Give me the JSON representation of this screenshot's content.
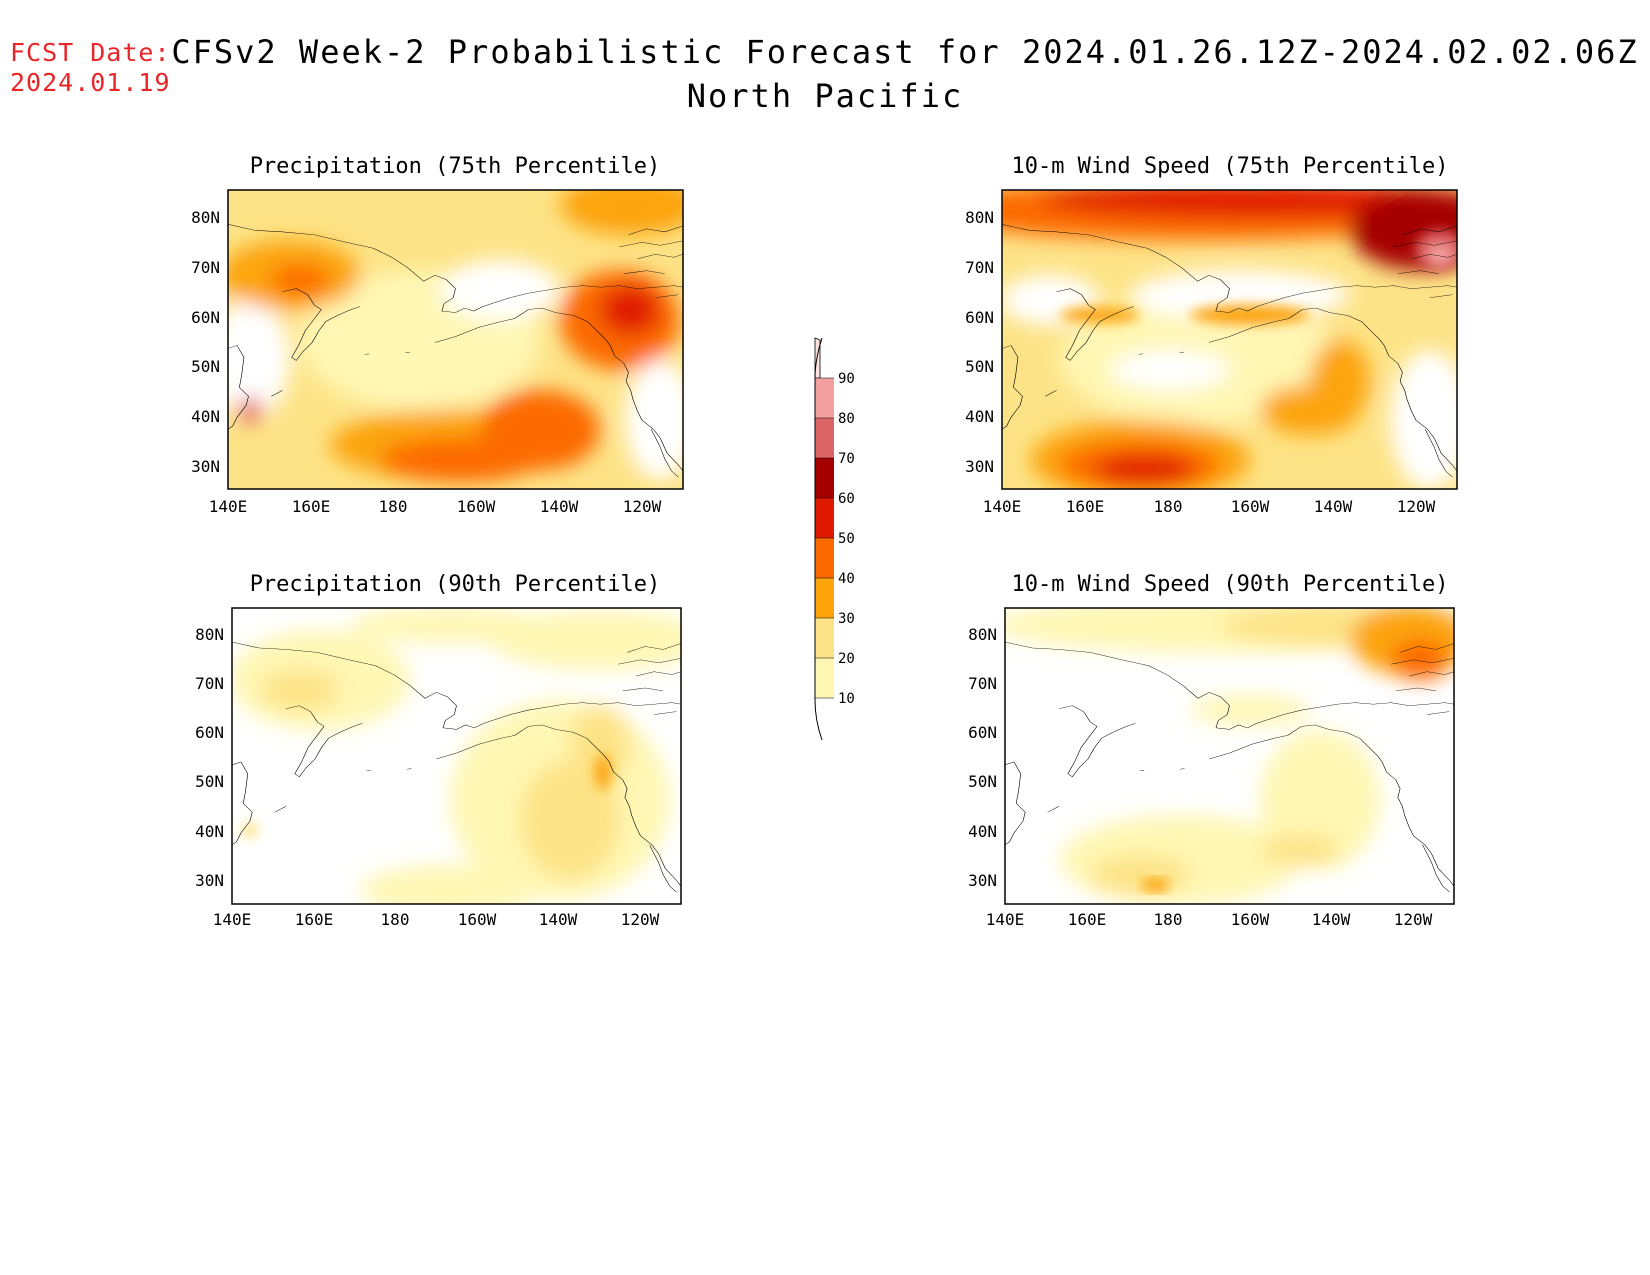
{
  "fcst": {
    "label": "FCST Date:",
    "date": "2024.01.19"
  },
  "title": {
    "line1": "CFSv2 Week-2 Probabilistic Forecast for 2024.01.26.12Z-2024.02.02.06Z",
    "line2": "North Pacific"
  },
  "colors": {
    "white": "#ffffff",
    "c10": "#fff7b4",
    "c20": "#fde387",
    "c30": "#fca40a",
    "c40": "#fc6a00",
    "c50": "#e01a00",
    "c60": "#a50000",
    "c70": "#dc6464",
    "c80": "#f4a0a0",
    "c90": "#fde0e0"
  },
  "chart_data": [
    {
      "type": "heatmap",
      "title": "Precipitation (75th Percentile)",
      "x_ticks": [
        "140E",
        "160E",
        "180",
        "160W",
        "140W",
        "120W"
      ],
      "y_ticks": [
        "80N",
        "70N",
        "60N",
        "50N",
        "40N",
        "30N"
      ],
      "xlim": [
        140,
        250
      ],
      "ylim": [
        25,
        85
      ]
    },
    {
      "type": "heatmap",
      "title": "10-m Wind Speed (75th Percentile)",
      "x_ticks": [
        "140E",
        "160E",
        "180",
        "160W",
        "140W",
        "120W"
      ],
      "y_ticks": [
        "80N",
        "70N",
        "60N",
        "50N",
        "40N",
        "30N"
      ],
      "xlim": [
        140,
        250
      ],
      "ylim": [
        25,
        85
      ]
    },
    {
      "type": "heatmap",
      "title": "Precipitation (90th Percentile)",
      "x_ticks": [
        "140E",
        "160E",
        "180",
        "160W",
        "140W",
        "120W"
      ],
      "y_ticks": [
        "80N",
        "70N",
        "60N",
        "50N",
        "40N",
        "30N"
      ],
      "xlim": [
        140,
        250
      ],
      "ylim": [
        25,
        85
      ]
    },
    {
      "type": "heatmap",
      "title": "10-m Wind Speed (90th Percentile)",
      "x_ticks": [
        "140E",
        "160E",
        "180",
        "160W",
        "140W",
        "120W"
      ],
      "y_ticks": [
        "80N",
        "70N",
        "60N",
        "50N",
        "40N",
        "30N"
      ],
      "xlim": [
        140,
        250
      ],
      "ylim": [
        25,
        85
      ]
    }
  ],
  "colorbar": {
    "labels": [
      "90",
      "80",
      "70",
      "60",
      "50",
      "40",
      "30",
      "20",
      "10"
    ]
  }
}
